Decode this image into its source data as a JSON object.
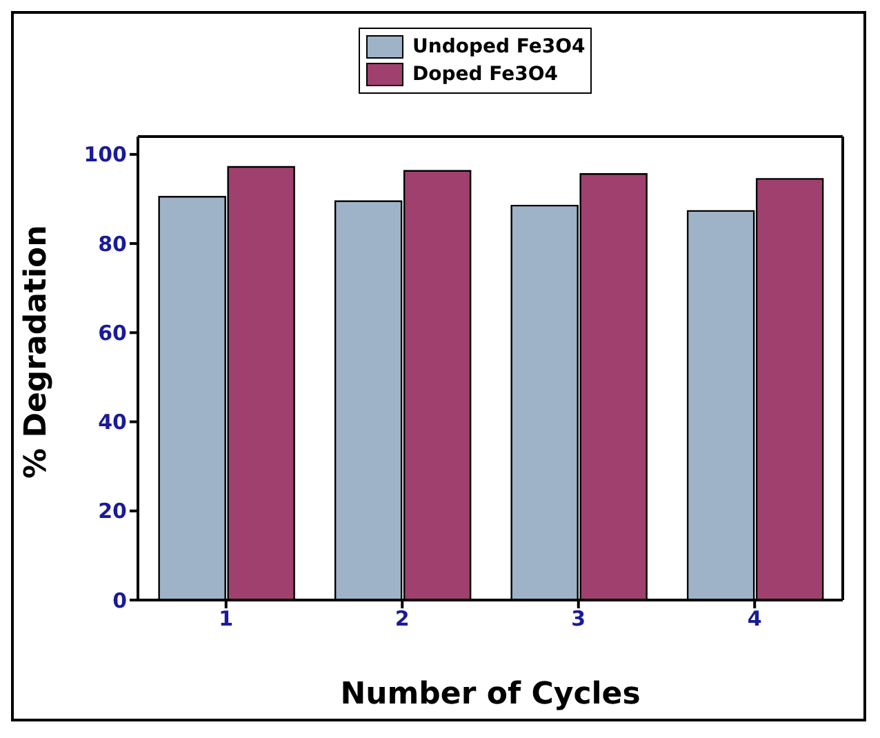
{
  "chart_data": {
    "type": "bar",
    "xlabel": "Number of Cycles",
    "ylabel": "% Degradation",
    "categories": [
      "1",
      "2",
      "3",
      "4"
    ],
    "series": [
      {
        "name": "Undoped Fe3O4",
        "color": "#9fb3c8",
        "values": [
          90.5,
          89.5,
          88.5,
          87.3
        ]
      },
      {
        "name": "Doped Fe3O4",
        "color": "#a0406e",
        "values": [
          97.2,
          96.3,
          95.6,
          94.5
        ]
      }
    ],
    "ylim": [
      0,
      104
    ],
    "yticks": [
      0,
      20,
      40,
      60,
      80,
      100
    ],
    "grid": false,
    "legend": "top"
  }
}
